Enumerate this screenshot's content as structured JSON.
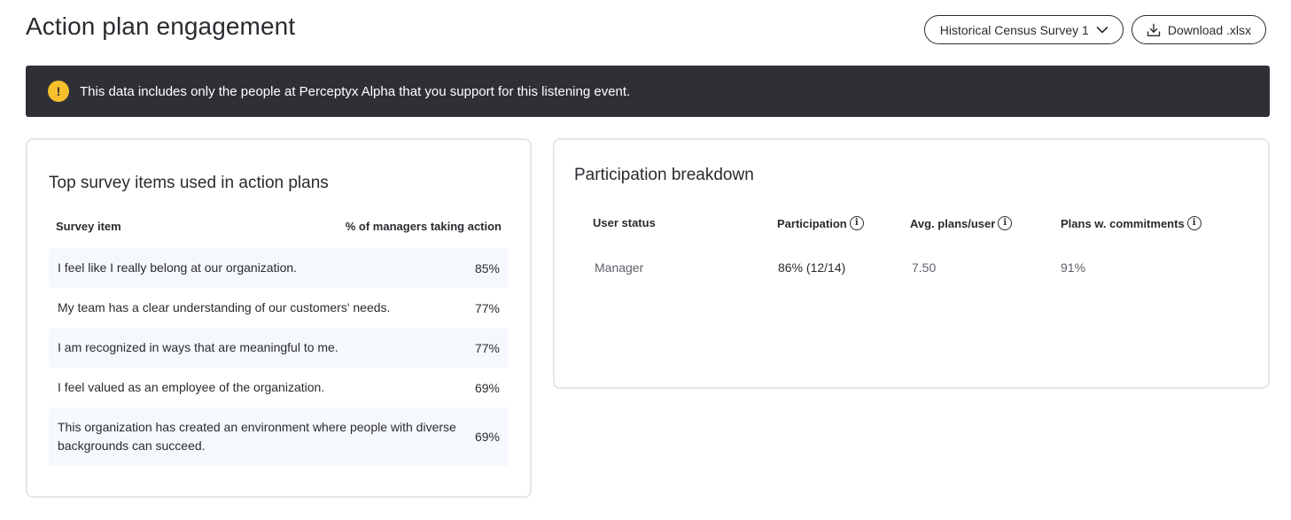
{
  "header": {
    "title": "Action plan engagement",
    "survey_select_label": "Historical Census Survey 1",
    "download_label": "Download .xlsx"
  },
  "banner": {
    "icon_symbol": "!",
    "text": "This data includes only the people at Perceptyx Alpha that you support for this listening event."
  },
  "top_items": {
    "title": "Top survey items used in action plans",
    "col_item": "Survey item",
    "col_pct": "% of managers taking action",
    "rows": [
      {
        "item": "I feel like I really belong at our organization.",
        "pct": "85%"
      },
      {
        "item": "My team has a clear understanding of our customers' needs.",
        "pct": "77%"
      },
      {
        "item": "I am recognized in ways that are meaningful to me.",
        "pct": "77%"
      },
      {
        "item": "I feel valued as an employee of the organization.",
        "pct": "69%"
      },
      {
        "item": "This organization has created an environment where people with diverse backgrounds can succeed.",
        "pct": "69%"
      }
    ]
  },
  "participation": {
    "title": "Participation breakdown",
    "col_status": "User status",
    "col_participation": "Participation",
    "col_avg": "Avg. plans/user",
    "col_commit": "Plans w. commitments",
    "row": {
      "status": "Manager",
      "participation": "86% (12/14)",
      "avg": "7.50",
      "commit": "91%"
    }
  },
  "colors": {
    "banner_bg": "#2e3036",
    "warning_icon": "#f5c02c",
    "row_shade": "#f5f8fc",
    "card_border": "#e6e7ea"
  }
}
